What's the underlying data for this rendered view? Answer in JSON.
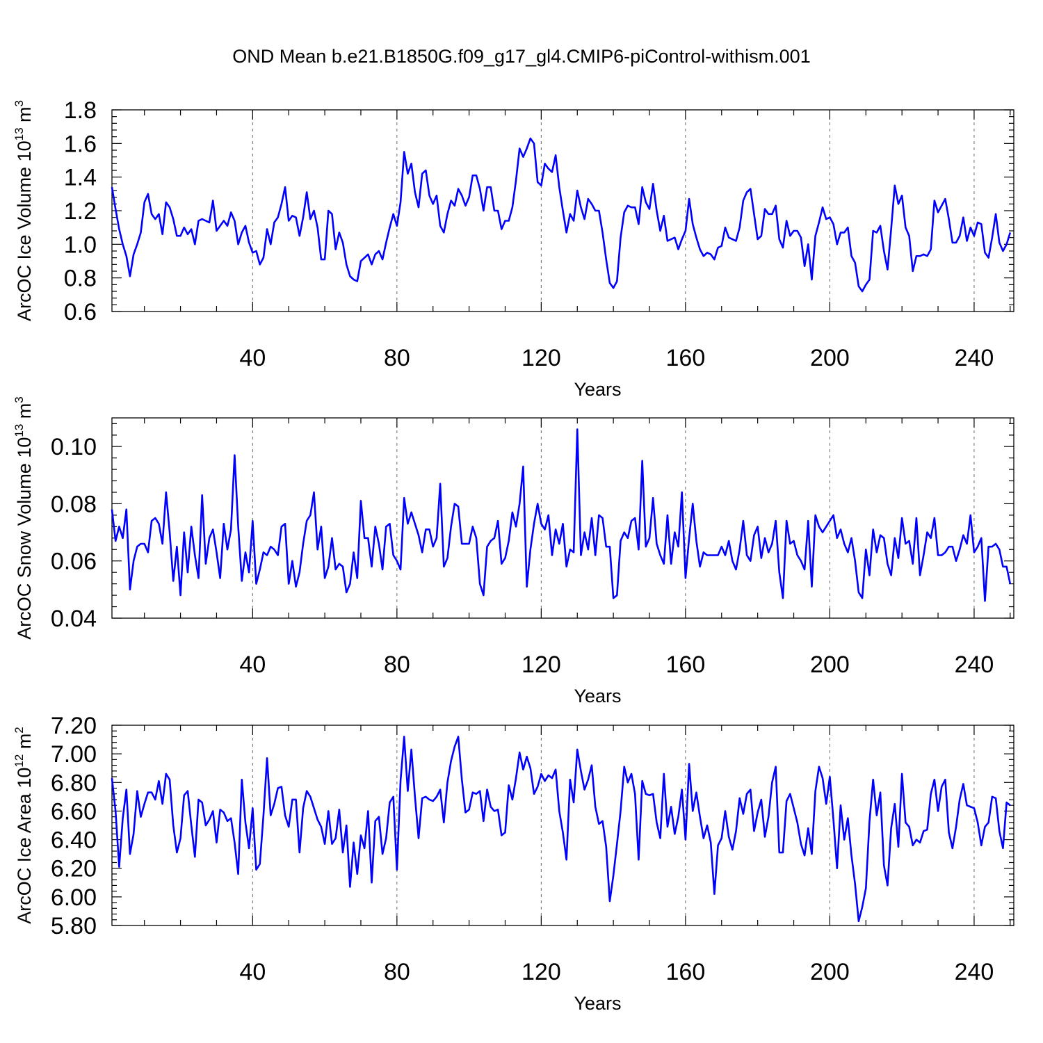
{
  "title": "OND Mean b.e21.B1850G.f09_g17_gl4.CMIP6-piControl-withism.001",
  "colors": {
    "line": "#0000ff",
    "axis": "#000000",
    "grid": "#666666",
    "background": "#ffffff"
  },
  "chart_data": [
    {
      "type": "line",
      "name": "ice-volume",
      "ylabel_main": "ArcOC Ice Volume 10",
      "ylabel_exp": "13",
      "ylabel_unit": " m",
      "ylabel_unit_exp": "3",
      "xlabel": "Years",
      "xlim": [
        1,
        251
      ],
      "ylim": [
        0.6,
        1.8
      ],
      "xticks": [
        40,
        80,
        120,
        160,
        200,
        240
      ],
      "xtick_labels": [
        "40",
        "80",
        "120",
        "160",
        "200",
        "240"
      ],
      "yticks": [
        0.6,
        0.8,
        1.0,
        1.2,
        1.4,
        1.6,
        1.8
      ],
      "ytick_labels": [
        "0.6",
        "0.8",
        "1.0",
        "1.2",
        "1.4",
        "1.6",
        "1.8"
      ],
      "grid_x": [
        40,
        80,
        120,
        160,
        200,
        240
      ],
      "series": [
        {
          "name": "ArcOC Ice Volume",
          "x_start": 1,
          "values": [
            1.34,
            1.21,
            1.09,
            1.0,
            0.93,
            0.81,
            0.94,
            1.0,
            1.07,
            1.25,
            1.3,
            1.18,
            1.15,
            1.18,
            1.06,
            1.25,
            1.22,
            1.15,
            1.05,
            1.05,
            1.1,
            1.06,
            1.09,
            1.0,
            1.14,
            1.15,
            1.14,
            1.13,
            1.26,
            1.08,
            1.11,
            1.14,
            1.11,
            1.19,
            1.14,
            1.0,
            1.07,
            1.11,
            1.01,
            0.95,
            0.96,
            0.88,
            0.92,
            1.09,
            1.0,
            1.13,
            1.16,
            1.24,
            1.34,
            1.14,
            1.17,
            1.16,
            1.05,
            1.16,
            1.31,
            1.15,
            1.2,
            1.1,
            0.91,
            0.91,
            1.2,
            1.18,
            0.97,
            1.07,
            1.01,
            0.88,
            0.81,
            0.79,
            0.78,
            0.9,
            0.92,
            0.94,
            0.88,
            0.94,
            0.96,
            0.91,
            1.01,
            1.1,
            1.18,
            1.11,
            1.25,
            1.55,
            1.42,
            1.48,
            1.31,
            1.22,
            1.42,
            1.44,
            1.29,
            1.24,
            1.29,
            1.11,
            1.07,
            1.18,
            1.26,
            1.23,
            1.33,
            1.29,
            1.23,
            1.28,
            1.41,
            1.41,
            1.33,
            1.2,
            1.34,
            1.34,
            1.2,
            1.2,
            1.09,
            1.14,
            1.14,
            1.22,
            1.38,
            1.57,
            1.52,
            1.57,
            1.63,
            1.6,
            1.37,
            1.35,
            1.48,
            1.45,
            1.43,
            1.53,
            1.34,
            1.2,
            1.07,
            1.18,
            1.14,
            1.32,
            1.22,
            1.15,
            1.27,
            1.24,
            1.2,
            1.2,
            1.07,
            0.91,
            0.77,
            0.74,
            0.78,
            1.04,
            1.19,
            1.23,
            1.22,
            1.22,
            1.12,
            1.34,
            1.25,
            1.21,
            1.36,
            1.2,
            1.08,
            1.17,
            1.02,
            1.03,
            1.04,
            0.97,
            1.03,
            1.08,
            1.27,
            1.12,
            1.04,
            0.97,
            0.93,
            0.95,
            0.94,
            0.91,
            0.98,
            0.99,
            1.1,
            1.04,
            1.03,
            1.02,
            1.1,
            1.26,
            1.31,
            1.33,
            1.18,
            1.03,
            1.05,
            1.21,
            1.18,
            1.18,
            1.23,
            1.03,
            0.98,
            1.14,
            1.05,
            1.08,
            1.08,
            1.04,
            0.87,
            1.0,
            0.79,
            1.05,
            1.13,
            1.22,
            1.15,
            1.16,
            1.12,
            1.0,
            1.07,
            1.07,
            1.1,
            0.93,
            0.89,
            0.75,
            0.72,
            0.76,
            0.79,
            1.08,
            1.07,
            1.11,
            0.96,
            0.85,
            1.09,
            1.35,
            1.24,
            1.29,
            1.1,
            1.05,
            0.84,
            0.93,
            0.93,
            0.94,
            0.93,
            0.97,
            1.26,
            1.19,
            1.23,
            1.27,
            1.15,
            1.01,
            1.01,
            1.05,
            1.16,
            1.02,
            1.1,
            1.05,
            1.13,
            1.12,
            0.95,
            0.92,
            1.04,
            1.18,
            1.01,
            0.96,
            1.0,
            1.07
          ]
        }
      ]
    },
    {
      "type": "line",
      "name": "snow-volume",
      "ylabel_main": "ArcOC Snow Volume 10",
      "ylabel_exp": "13",
      "ylabel_unit": " m",
      "ylabel_unit_exp": "3",
      "xlabel": "Years",
      "xlim": [
        1,
        251
      ],
      "ylim": [
        0.04,
        0.11
      ],
      "xticks": [
        40,
        80,
        120,
        160,
        200,
        240
      ],
      "xtick_labels": [
        "40",
        "80",
        "120",
        "160",
        "200",
        "240"
      ],
      "yticks": [
        0.04,
        0.06,
        0.08,
        0.1
      ],
      "ytick_labels": [
        "0.04",
        "0.06",
        "0.08",
        "0.10"
      ],
      "grid_x": [
        40,
        80,
        120,
        160,
        200,
        240
      ],
      "series": [
        {
          "name": "ArcOC Snow Volume",
          "x_start": 1,
          "values": [
            0.078,
            0.067,
            0.072,
            0.068,
            0.078,
            0.05,
            0.06,
            0.065,
            0.066,
            0.066,
            0.063,
            0.074,
            0.075,
            0.073,
            0.066,
            0.084,
            0.07,
            0.053,
            0.065,
            0.048,
            0.07,
            0.056,
            0.072,
            0.062,
            0.054,
            0.083,
            0.059,
            0.068,
            0.071,
            0.063,
            0.054,
            0.073,
            0.064,
            0.071,
            0.097,
            0.072,
            0.053,
            0.063,
            0.056,
            0.074,
            0.052,
            0.057,
            0.063,
            0.062,
            0.065,
            0.064,
            0.062,
            0.072,
            0.073,
            0.052,
            0.06,
            0.051,
            0.056,
            0.066,
            0.074,
            0.076,
            0.084,
            0.064,
            0.072,
            0.054,
            0.058,
            0.068,
            0.057,
            0.059,
            0.058,
            0.049,
            0.052,
            0.063,
            0.054,
            0.081,
            0.068,
            0.068,
            0.058,
            0.072,
            0.066,
            0.057,
            0.072,
            0.073,
            0.062,
            0.06,
            0.057,
            0.082,
            0.073,
            0.077,
            0.073,
            0.069,
            0.063,
            0.071,
            0.071,
            0.065,
            0.068,
            0.087,
            0.058,
            0.061,
            0.072,
            0.08,
            0.079,
            0.066,
            0.066,
            0.066,
            0.072,
            0.068,
            0.052,
            0.048,
            0.065,
            0.067,
            0.068,
            0.074,
            0.059,
            0.061,
            0.067,
            0.077,
            0.072,
            0.08,
            0.093,
            0.051,
            0.064,
            0.073,
            0.08,
            0.073,
            0.071,
            0.076,
            0.062,
            0.071,
            0.066,
            0.073,
            0.058,
            0.064,
            0.063,
            0.106,
            0.062,
            0.07,
            0.064,
            0.075,
            0.062,
            0.076,
            0.075,
            0.065,
            0.065,
            0.047,
            0.048,
            0.067,
            0.07,
            0.068,
            0.074,
            0.075,
            0.064,
            0.095,
            0.065,
            0.068,
            0.082,
            0.066,
            0.062,
            0.059,
            0.076,
            0.059,
            0.07,
            0.065,
            0.084,
            0.054,
            0.068,
            0.08,
            0.067,
            0.058,
            0.063,
            0.062,
            0.062,
            0.062,
            0.062,
            0.065,
            0.062,
            0.067,
            0.06,
            0.057,
            0.064,
            0.074,
            0.062,
            0.06,
            0.069,
            0.072,
            0.061,
            0.068,
            0.063,
            0.066,
            0.074,
            0.056,
            0.047,
            0.074,
            0.066,
            0.067,
            0.062,
            0.06,
            0.057,
            0.074,
            0.051,
            0.076,
            0.072,
            0.07,
            0.072,
            0.074,
            0.076,
            0.068,
            0.071,
            0.066,
            0.063,
            0.068,
            0.06,
            0.049,
            0.047,
            0.064,
            0.055,
            0.071,
            0.063,
            0.069,
            0.068,
            0.059,
            0.055,
            0.068,
            0.061,
            0.075,
            0.066,
            0.067,
            0.059,
            0.075,
            0.055,
            0.062,
            0.07,
            0.068,
            0.075,
            0.062,
            0.062,
            0.063,
            0.065,
            0.065,
            0.06,
            0.064,
            0.069,
            0.066,
            0.076,
            0.063,
            0.065,
            0.068,
            0.046,
            0.065,
            0.065,
            0.066,
            0.064,
            0.058,
            0.058,
            0.052
          ]
        }
      ]
    },
    {
      "type": "line",
      "name": "ice-area",
      "ylabel_main": "ArcOC Ice Area 10",
      "ylabel_exp": "12",
      "ylabel_unit": " m",
      "ylabel_unit_exp": "2",
      "xlabel": "Years",
      "xlim": [
        1,
        251
      ],
      "ylim": [
        5.8,
        7.2
      ],
      "xticks": [
        40,
        80,
        120,
        160,
        200,
        240
      ],
      "xtick_labels": [
        "40",
        "80",
        "120",
        "160",
        "200",
        "240"
      ],
      "yticks": [
        5.8,
        6.0,
        6.2,
        6.4,
        6.6,
        6.8,
        7.0,
        7.2
      ],
      "ytick_labels": [
        "5.80",
        "6.00",
        "6.20",
        "6.40",
        "6.60",
        "6.80",
        "7.00",
        "7.20"
      ],
      "grid_x": [
        40,
        80,
        120,
        160,
        200,
        240
      ],
      "series": [
        {
          "name": "ArcOC Ice Area",
          "x_start": 1,
          "values": [
            6.83,
            6.6,
            6.21,
            6.55,
            6.75,
            6.3,
            6.44,
            6.74,
            6.56,
            6.65,
            6.73,
            6.73,
            6.68,
            6.81,
            6.65,
            6.86,
            6.82,
            6.5,
            6.31,
            6.41,
            6.71,
            6.74,
            6.5,
            6.28,
            6.68,
            6.66,
            6.5,
            6.54,
            6.6,
            6.38,
            6.61,
            6.59,
            6.53,
            6.55,
            6.38,
            6.16,
            6.82,
            6.52,
            6.34,
            6.62,
            6.19,
            6.23,
            6.57,
            6.97,
            6.57,
            6.65,
            6.76,
            6.77,
            6.57,
            6.49,
            6.68,
            6.68,
            6.31,
            6.62,
            6.74,
            6.7,
            6.62,
            6.54,
            6.49,
            6.37,
            6.6,
            6.37,
            6.41,
            6.61,
            6.31,
            6.5,
            6.07,
            6.38,
            6.16,
            6.43,
            6.34,
            6.6,
            6.1,
            6.53,
            6.56,
            6.3,
            6.41,
            6.66,
            6.7,
            6.19,
            6.81,
            7.12,
            6.74,
            7.03,
            6.7,
            6.41,
            6.69,
            6.7,
            6.68,
            6.67,
            6.7,
            6.75,
            6.52,
            6.8,
            6.95,
            7.05,
            7.12,
            6.82,
            6.59,
            6.61,
            6.73,
            6.72,
            6.74,
            6.53,
            6.75,
            6.63,
            6.6,
            6.61,
            6.43,
            6.45,
            6.78,
            6.68,
            6.83,
            7.01,
            6.89,
            6.98,
            6.9,
            6.72,
            6.77,
            6.86,
            6.81,
            6.85,
            6.83,
            6.89,
            6.6,
            6.45,
            6.26,
            6.82,
            6.66,
            7.03,
            6.88,
            6.75,
            6.82,
            6.92,
            6.63,
            6.51,
            6.53,
            6.35,
            5.97,
            6.15,
            6.37,
            6.6,
            6.91,
            6.8,
            6.86,
            6.72,
            6.26,
            6.81,
            6.72,
            6.71,
            6.72,
            6.52,
            6.41,
            6.86,
            6.49,
            6.63,
            6.44,
            6.56,
            6.75,
            6.4,
            6.93,
            6.6,
            6.73,
            6.56,
            6.41,
            6.5,
            6.38,
            6.02,
            6.36,
            6.41,
            6.6,
            6.42,
            6.33,
            6.46,
            6.69,
            6.58,
            6.72,
            6.75,
            6.46,
            6.59,
            6.68,
            6.42,
            6.56,
            6.8,
            6.91,
            6.31,
            6.31,
            6.67,
            6.72,
            6.62,
            6.52,
            6.37,
            6.29,
            6.48,
            6.3,
            6.74,
            6.91,
            6.83,
            6.65,
            6.84,
            6.54,
            6.2,
            6.64,
            6.4,
            6.55,
            6.29,
            6.09,
            5.83,
            5.93,
            6.06,
            6.53,
            6.82,
            6.57,
            6.73,
            6.22,
            6.08,
            6.48,
            6.65,
            6.35,
            6.86,
            6.52,
            6.49,
            6.36,
            6.4,
            6.38,
            6.46,
            6.47,
            6.72,
            6.82,
            6.6,
            6.77,
            6.82,
            6.45,
            6.34,
            6.49,
            6.68,
            6.79,
            6.64,
            6.63,
            6.62,
            6.52,
            6.36,
            6.49,
            6.52,
            6.7,
            6.69,
            6.46,
            6.34,
            6.66,
            6.64
          ]
        }
      ]
    }
  ]
}
